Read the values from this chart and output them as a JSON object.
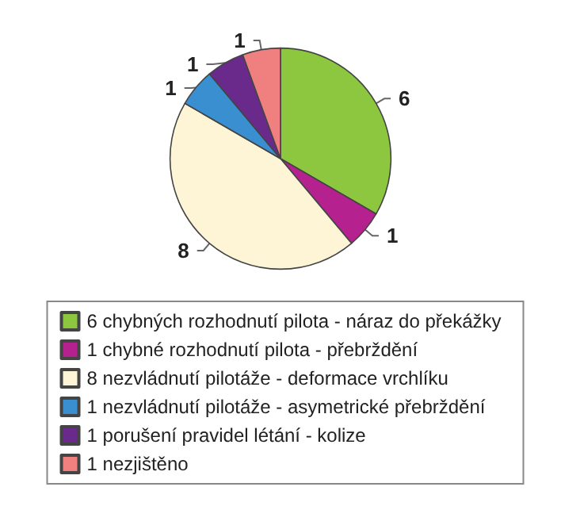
{
  "chart_data": {
    "type": "pie",
    "categories": [
      "6 chybných rozhodnutí pilota - náraz do překážky",
      "1 chybné rozhodnutí pilota - přebrždění",
      "8 nezvládnutí pilotáže - deformace vrchlíku",
      "1 nezvládnutí pilotáže - asymetrické přebrždění",
      "1 porušení pravidel létání - kolize",
      "1 nezjištěno"
    ],
    "values": [
      6,
      1,
      8,
      1,
      1,
      1
    ],
    "colors": [
      "#8dc63f",
      "#b5218e",
      "#fdf5d6",
      "#3a8fd0",
      "#6a2a8c",
      "#f08080"
    ],
    "data_labels": true,
    "legend": "bottom"
  }
}
